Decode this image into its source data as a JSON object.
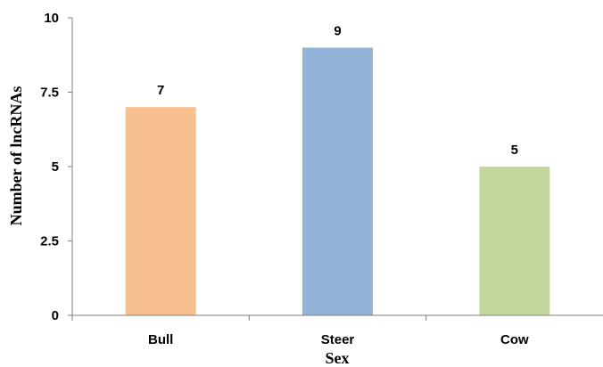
{
  "chart_data": {
    "type": "bar",
    "categories": [
      "Bull",
      "Steer",
      "Cow"
    ],
    "values": [
      7,
      9,
      5
    ],
    "data_labels": [
      "7",
      "9",
      "5"
    ],
    "colors": [
      "#f8c08f",
      "#93b3d8",
      "#c3d69b"
    ],
    "title": "",
    "xlabel": "Sex",
    "ylabel": "Number of lncRNAs",
    "ylim": [
      0,
      10
    ],
    "yticks": [
      0,
      2.5,
      5,
      7.5,
      10
    ],
    "ytick_labels": [
      "0",
      "2.5",
      "5",
      "7.5",
      "10"
    ],
    "grid": false,
    "legend": "none"
  }
}
